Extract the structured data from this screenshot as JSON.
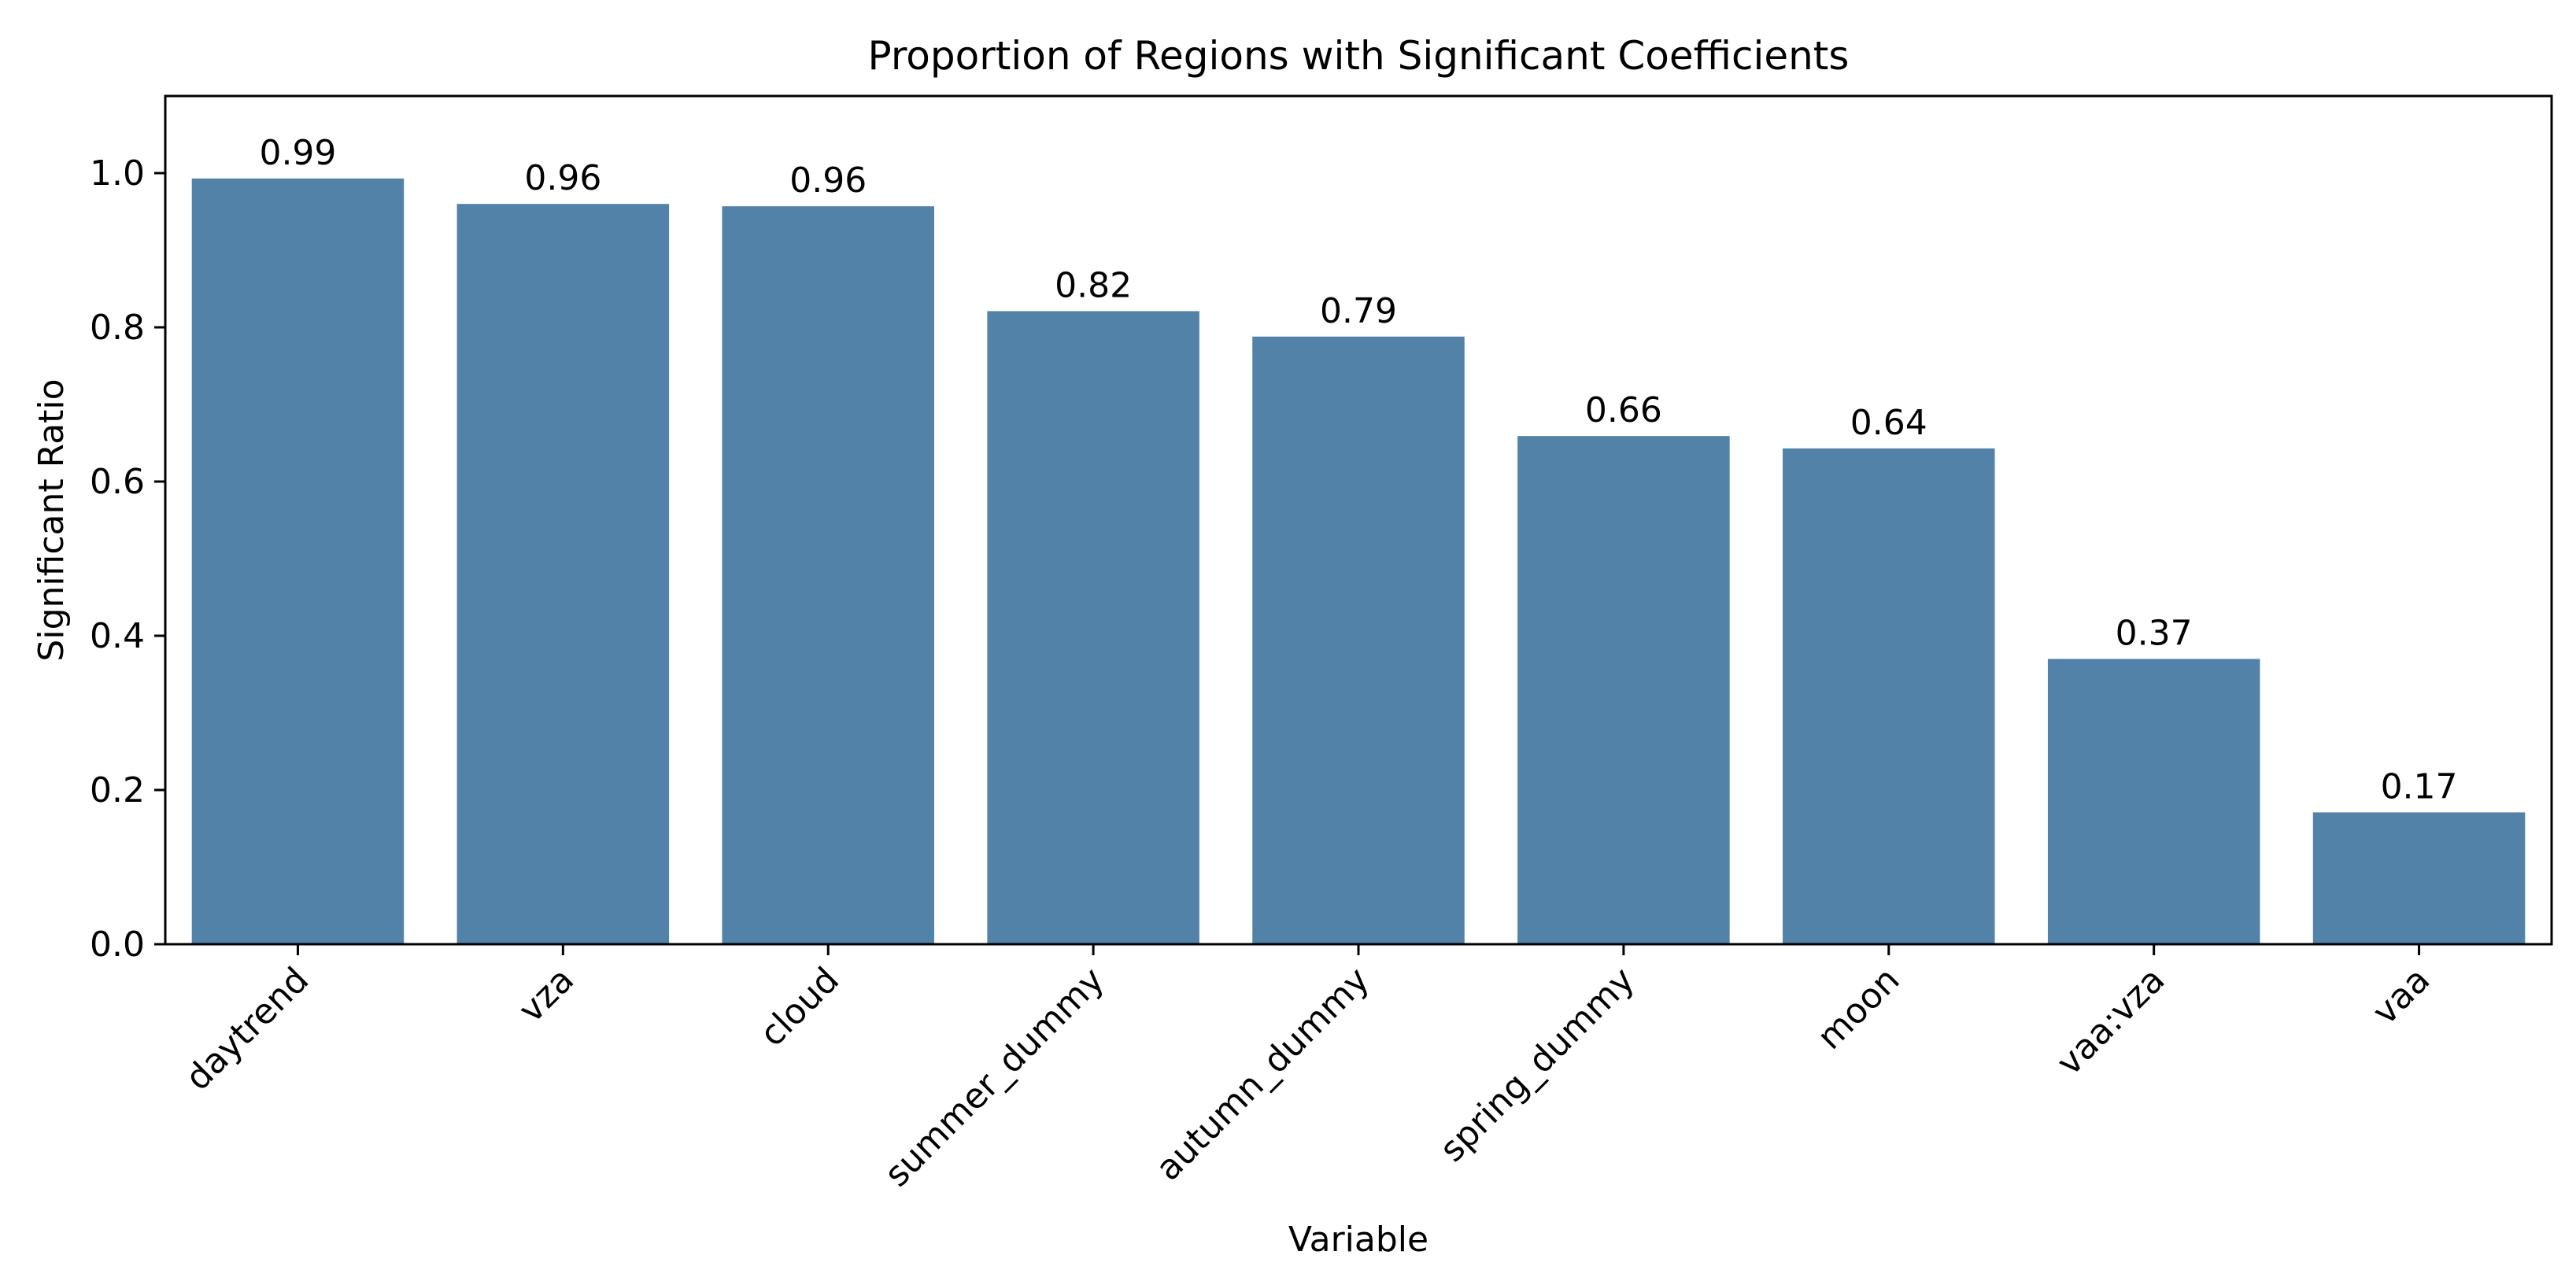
{
  "chart_data": {
    "type": "bar",
    "title": "Proportion of Regions with Significant Coefficients",
    "xlabel": "Variable",
    "ylabel": "Significant Ratio",
    "categories": [
      "daytrend",
      "vza",
      "cloud",
      "summer_dummy",
      "autumn_dummy",
      "spring_dummy",
      "moon",
      "vaa:vza",
      "vaa"
    ],
    "values": [
      0.993,
      0.96,
      0.957,
      0.821,
      0.788,
      0.659,
      0.643,
      0.37,
      0.171
    ],
    "data_labels": [
      "0.99",
      "0.96",
      "0.96",
      "0.82",
      "0.79",
      "0.66",
      "0.64",
      "0.37",
      "0.17"
    ],
    "yticks": [
      0.0,
      0.2,
      0.4,
      0.6,
      0.8,
      1.0
    ],
    "ytick_labels": [
      "0.0",
      "0.2",
      "0.4",
      "0.6",
      "0.8",
      "1.0"
    ],
    "ylim": [
      0,
      1.1
    ],
    "bar_color": "#5282a8",
    "grid": false,
    "legend": "none"
  }
}
